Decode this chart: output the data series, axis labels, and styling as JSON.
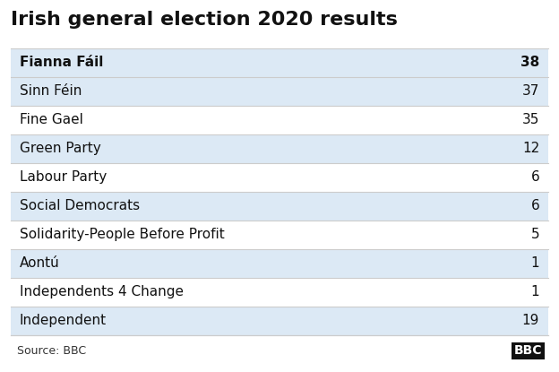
{
  "title": "Irish general election 2020 results",
  "parties": [
    "Fianna Fáil",
    "Sinn Féin",
    "Fine Gael",
    "Green Party",
    "Labour Party",
    "Social Democrats",
    "Solidarity-People Before Profit",
    "Aontú",
    "Independents 4 Change",
    "Independent"
  ],
  "seats": [
    38,
    37,
    35,
    12,
    6,
    6,
    5,
    1,
    1,
    19
  ],
  "row_colors": [
    "#dce9f5",
    "#dce9f5",
    "#ffffff",
    "#dce9f5",
    "#ffffff",
    "#dce9f5",
    "#ffffff",
    "#dce9f5",
    "#ffffff",
    "#dce9f5"
  ],
  "title_fontsize": 16,
  "body_fontsize": 11,
  "source_text": "Source: BBC",
  "bbc_logo": "BBC",
  "background_color": "#ffffff",
  "border_color": "#cccccc",
  "text_color": "#111111",
  "source_color": "#333333",
  "bbc_fg": "#ffffff",
  "bbc_bg": "#111111"
}
